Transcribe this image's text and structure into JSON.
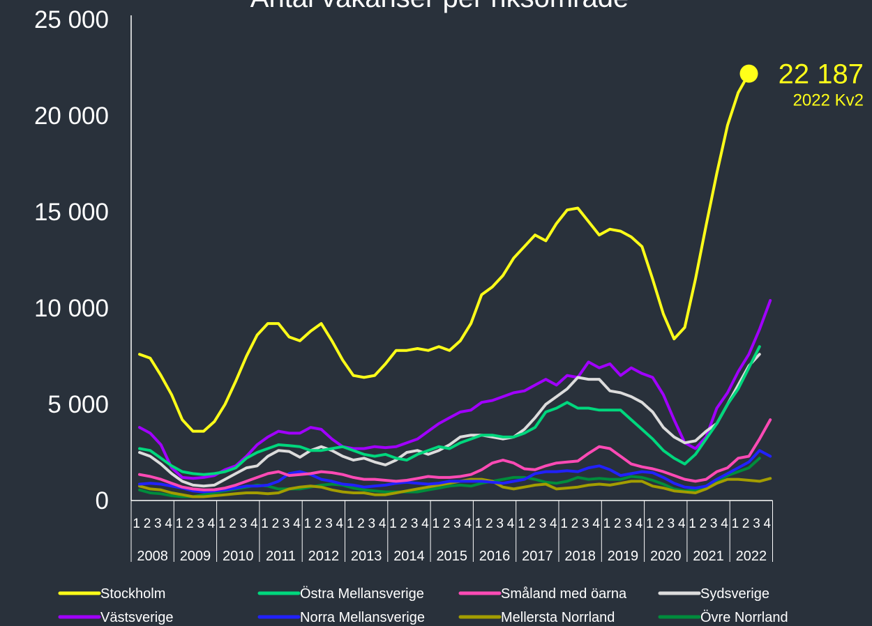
{
  "chart_data": {
    "type": "line",
    "title": "Antal vakanser per riksområde",
    "ylim": [
      0,
      25000
    ],
    "y_ticks": [
      "0",
      "5 000",
      "10 000",
      "15 000",
      "20 000",
      "25 000"
    ],
    "years": [
      "2008",
      "2009",
      "2010",
      "2011",
      "2012",
      "2013",
      "2014",
      "2015",
      "2016",
      "2017",
      "2018",
      "2019",
      "2020",
      "2021",
      "2022"
    ],
    "quarter_labels": [
      "1",
      "2",
      "3",
      "4"
    ],
    "x_label_format": "{year} Kv{q}",
    "annotation": {
      "value_label": "22 187",
      "period_label": "2022 Kv2"
    },
    "series": [
      {
        "name": "Stockholm",
        "color": "#ffff19",
        "values": [
          7600,
          7400,
          6500,
          5500,
          4200,
          3600,
          3600,
          4100,
          5000,
          6200,
          7500,
          8600,
          9200,
          9200,
          8500,
          8300,
          8800,
          9200,
          8300,
          7300,
          6500,
          6400,
          6500,
          7100,
          7800,
          7800,
          7900,
          7800,
          8000,
          7800,
          8300,
          9200,
          10700,
          11100,
          11700,
          12600,
          13200,
          13800,
          13500,
          14400,
          15100,
          15200,
          14500,
          13800,
          14100,
          14000,
          13700,
          13200,
          11500,
          9700,
          8400,
          9000,
          11500,
          14300,
          17000,
          19500,
          21200,
          22187
        ]
      },
      {
        "name": "Östra Mellansverige",
        "color": "#00d77d",
        "values": [
          2700,
          2600,
          2200,
          1800,
          1500,
          1400,
          1350,
          1400,
          1500,
          1700,
          2200,
          2500,
          2700,
          2900,
          2850,
          2800,
          2600,
          2600,
          2700,
          2800,
          2600,
          2400,
          2300,
          2400,
          2200,
          2100,
          2400,
          2600,
          2800,
          2700,
          3000,
          3200,
          3400,
          3400,
          3300,
          3300,
          3500,
          3800,
          4600,
          4800,
          5100,
          4800,
          4800,
          4700,
          4700,
          4700,
          4200,
          3700,
          3200,
          2600,
          2200,
          1900,
          2400,
          3200,
          4000,
          5000,
          5800,
          6900,
          8000
        ]
      },
      {
        "name": "Småland med öarna",
        "color": "#ff4ab5",
        "values": [
          1350,
          1250,
          1100,
          900,
          700,
          600,
          550,
          560,
          650,
          800,
          1000,
          1200,
          1400,
          1500,
          1300,
          1350,
          1400,
          1500,
          1450,
          1350,
          1200,
          1100,
          1100,
          1050,
          1000,
          1050,
          1150,
          1250,
          1200,
          1200,
          1250,
          1350,
          1600,
          1950,
          2100,
          1950,
          1650,
          1600,
          1800,
          1950,
          2000,
          2050,
          2450,
          2800,
          2700,
          2300,
          1900,
          1750,
          1650,
          1500,
          1300,
          1100,
          1000,
          1100,
          1500,
          1700,
          2200,
          2300,
          3200,
          4200
        ]
      },
      {
        "name": "Sydsverige",
        "color": "#dcdcdc",
        "values": [
          2500,
          2300,
          1900,
          1400,
          1000,
          800,
          750,
          800,
          1100,
          1400,
          1700,
          1800,
          2300,
          2600,
          2550,
          2250,
          2600,
          2800,
          2600,
          2300,
          2100,
          2200,
          2000,
          1850,
          2100,
          2500,
          2600,
          2400,
          2600,
          2900,
          3300,
          3400,
          3400,
          3300,
          3200,
          3300,
          3700,
          4300,
          5000,
          5400,
          5800,
          6400,
          6300,
          6300,
          5700,
          5600,
          5400,
          5100,
          4600,
          3800,
          3300,
          3000,
          3100,
          3600,
          4000,
          5000,
          6000,
          7000,
          7600
        ]
      },
      {
        "name": "Västsverige",
        "color": "#a100ff",
        "values": [
          3800,
          3500,
          2900,
          1700,
          1200,
          1150,
          1200,
          1300,
          1600,
          1800,
          2300,
          2900,
          3300,
          3600,
          3500,
          3500,
          3800,
          3700,
          3200,
          2800,
          2700,
          2700,
          2800,
          2750,
          2800,
          3000,
          3200,
          3600,
          4000,
          4300,
          4600,
          4700,
          5100,
          5200,
          5400,
          5600,
          5700,
          6000,
          6300,
          6000,
          6500,
          6400,
          7200,
          6900,
          7100,
          6500,
          6900,
          6600,
          6400,
          5500,
          4200,
          3000,
          2700,
          3300,
          4800,
          5600,
          6700,
          7600,
          8900,
          10400
        ]
      },
      {
        "name": "Norra Mellansverige",
        "color": "#2121ff",
        "values": [
          850,
          900,
          850,
          750,
          650,
          500,
          450,
          500,
          550,
          650,
          750,
          750,
          800,
          1000,
          1400,
          1500,
          1350,
          1100,
          1000,
          850,
          800,
          700,
          750,
          800,
          900,
          950,
          900,
          850,
          900,
          1000,
          1000,
          1000,
          1000,
          950,
          900,
          1000,
          1100,
          1400,
          1500,
          1500,
          1550,
          1500,
          1700,
          1800,
          1600,
          1300,
          1400,
          1500,
          1450,
          1200,
          900,
          700,
          650,
          750,
          1100,
          1400,
          1700,
          2000,
          2600,
          2300
        ]
      },
      {
        "name": "Mellersta Norrland",
        "color": "#a39d00",
        "values": [
          750,
          600,
          550,
          400,
          300,
          200,
          200,
          250,
          300,
          350,
          400,
          400,
          350,
          400,
          600,
          700,
          750,
          700,
          550,
          450,
          400,
          400,
          300,
          300,
          400,
          500,
          600,
          700,
          800,
          900,
          1000,
          1100,
          1100,
          1000,
          700,
          600,
          700,
          800,
          850,
          600,
          650,
          700,
          800,
          850,
          800,
          900,
          1000,
          1000,
          750,
          650,
          500,
          450,
          400,
          600,
          900,
          1100,
          1100,
          1050,
          1000,
          1150
        ]
      },
      {
        "name": "Övre Norrland",
        "color": "#008c3c",
        "values": [
          550,
          400,
          350,
          250,
          200,
          200,
          300,
          400,
          500,
          600,
          700,
          800,
          750,
          600,
          600,
          600,
          700,
          800,
          850,
          800,
          650,
          550,
          500,
          450,
          450,
          450,
          450,
          550,
          650,
          750,
          800,
          750,
          900,
          1000,
          1100,
          1200,
          1200,
          1100,
          950,
          900,
          1000,
          1200,
          1100,
          1150,
          1100,
          1100,
          1250,
          1200,
          1050,
          850,
          600,
          500,
          550,
          700,
          1000,
          1300,
          1500,
          1700,
          2200
        ]
      }
    ]
  }
}
